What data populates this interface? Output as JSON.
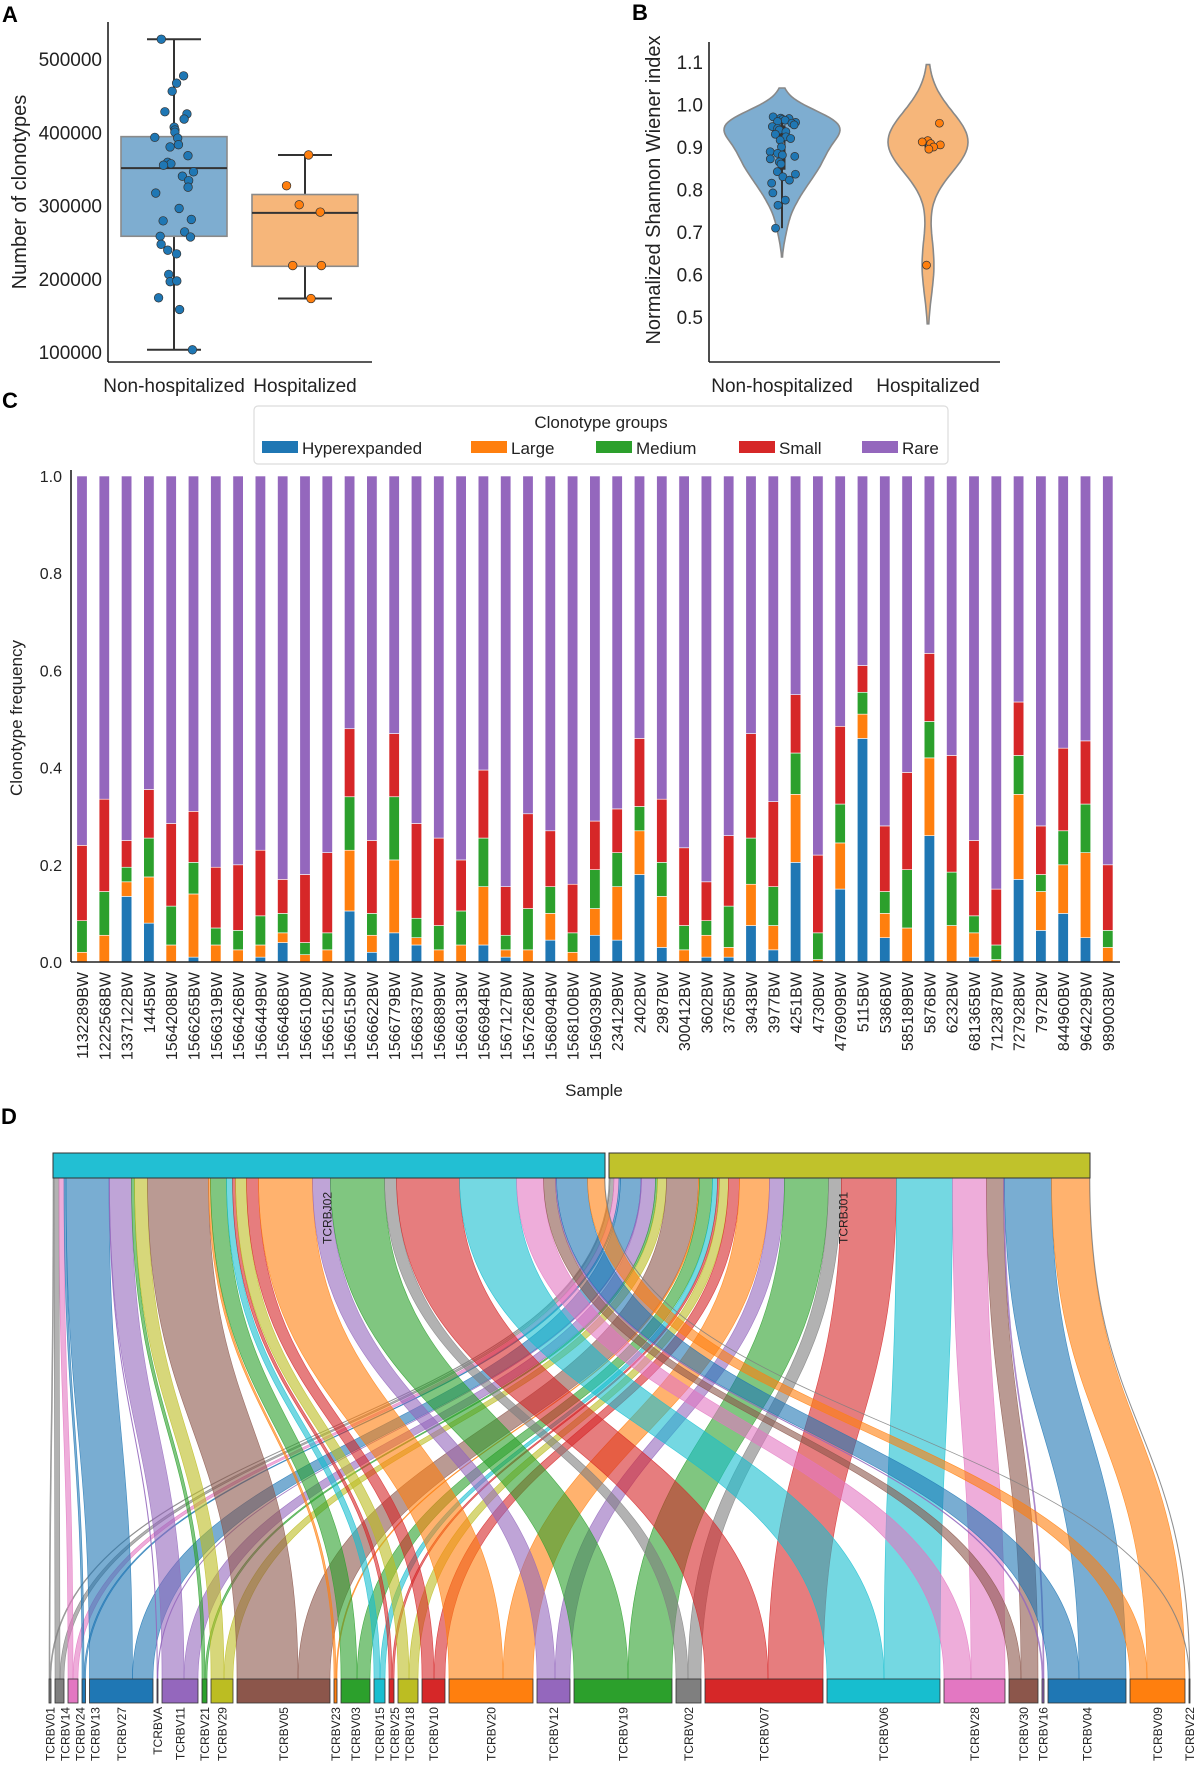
{
  "panels": {
    "a": "A",
    "b": "B",
    "c": "C",
    "d": "D"
  },
  "colors": {
    "blue": "#1f77b4",
    "orange": "#ff7f0e",
    "green": "#2ca02c",
    "red": "#d62728",
    "purple": "#9467bd",
    "brown": "#8c564b",
    "pink": "#e377c2",
    "gray": "#7f7f7f",
    "olive": "#bcbd22",
    "cyan": "#17becf",
    "box_blue": "#7eadd0",
    "box_orange": "#f6b67a"
  },
  "chart_data": [
    {
      "id": "A",
      "type": "box",
      "ylabel": "Number of clonotypes",
      "xlabel": "",
      "categories": [
        "Non-hospitalized",
        "Hospitalized"
      ],
      "yticks": [
        100000,
        200000,
        300000,
        400000,
        500000
      ],
      "ylim": [
        90000,
        540000
      ],
      "boxes": [
        {
          "name": "Non-hospitalized",
          "q1": 258000,
          "median": 351000,
          "q3": 394000,
          "whisker_low": 103000,
          "whisker_high": 527000
        },
        {
          "name": "Hospitalized",
          "q1": 217000,
          "median": 290000,
          "q3": 315000,
          "whisker_low": 173000,
          "whisker_high": 369000
        }
      ],
      "points": [
        [
          527000,
          477000,
          467000,
          456000,
          428000,
          425000,
          418000,
          407000,
          403000,
          400000,
          393000,
          392000,
          383000,
          380000,
          368000,
          359000,
          357000,
          355000,
          346000,
          340000,
          334000,
          325000,
          317000,
          296000,
          281000,
          279000,
          264000,
          258000,
          257000,
          247000,
          239000,
          234000,
          206000,
          196000,
          197000,
          174000,
          158000,
          103000
        ],
        [
          369000,
          327000,
          301000,
          291000,
          218000,
          218000,
          173000
        ]
      ]
    },
    {
      "id": "B",
      "type": "violin",
      "ylabel": "Normalized Shannon Wiener index",
      "xlabel": "",
      "categories": [
        "Non-hospitalized",
        "Hospitalized"
      ],
      "yticks": [
        0.5,
        0.6,
        0.7,
        0.8,
        0.9,
        1.0,
        1.1
      ],
      "ylim": [
        0.45,
        1.15
      ],
      "points": [
        [
          0.971,
          0.968,
          0.967,
          0.965,
          0.963,
          0.96,
          0.958,
          0.956,
          0.952,
          0.948,
          0.944,
          0.94,
          0.936,
          0.93,
          0.924,
          0.92,
          0.916,
          0.9,
          0.889,
          0.885,
          0.881,
          0.878,
          0.872,
          0.865,
          0.86,
          0.842,
          0.836,
          0.83,
          0.822,
          0.815,
          0.792,
          0.775,
          0.763,
          0.709
        ],
        [
          0.956,
          0.915,
          0.912,
          0.908,
          0.905,
          0.9,
          0.895,
          0.622
        ]
      ]
    },
    {
      "id": "C",
      "type": "bar",
      "stacked": true,
      "ylabel": "Clonotype frequency",
      "xlabel": "Sample",
      "ylim": [
        0,
        1.0
      ],
      "yticks": [
        0.0,
        0.2,
        0.4,
        0.6,
        0.8,
        1.0
      ],
      "legend": {
        "title": "Clonotype groups",
        "placement": "top-center"
      },
      "categories": [
        "1132289BW",
        "1222568BW",
        "1337122BW",
        "1445BW",
        "1564208BW",
        "1566265BW",
        "1566319BW",
        "1566426BW",
        "1566449BW",
        "1566486BW",
        "1566510BW",
        "1566512BW",
        "1566515BW",
        "1566622BW",
        "1566779BW",
        "1566837BW",
        "1566889BW",
        "1566913BW",
        "1566984BW",
        "1567127BW",
        "1567268BW",
        "1568094BW",
        "1568100BW",
        "1569039BW",
        "234129BW",
        "2402BW",
        "2987BW",
        "300412BW",
        "3602BW",
        "3765BW",
        "3943BW",
        "3977BW",
        "4251BW",
        "4730BW",
        "476909BW",
        "5115BW",
        "5386BW",
        "585189BW",
        "5876BW",
        "6232BW",
        "681365BW",
        "712387BW",
        "727928BW",
        "7972BW",
        "844960BW",
        "964229BW",
        "989003BW"
      ],
      "series": [
        {
          "name": "Hyperexpanded",
          "color": "#1f77b4",
          "values": [
            0,
            0,
            0.135,
            0.08,
            0,
            0.01,
            0,
            0,
            0.01,
            0.04,
            0,
            0,
            0.105,
            0.02,
            0.06,
            0.035,
            0,
            0,
            0.035,
            0.01,
            0,
            0.045,
            0,
            0.055,
            0.045,
            0.18,
            0.03,
            0,
            0.01,
            0.01,
            0.075,
            0.025,
            0.205,
            0,
            0.15,
            0.46,
            0.05,
            0,
            0.26,
            0,
            0.01,
            0,
            0.17,
            0.065,
            0.1,
            0.05,
            0
          ]
        },
        {
          "name": "Large",
          "color": "#ff7f0e",
          "values": [
            0.02,
            0.055,
            0.03,
            0.095,
            0.035,
            0.13,
            0.035,
            0.025,
            0.025,
            0.02,
            0.015,
            0.025,
            0.125,
            0.035,
            0.15,
            0.015,
            0.025,
            0.035,
            0.12,
            0.015,
            0.025,
            0.055,
            0.02,
            0.055,
            0.11,
            0.09,
            0.105,
            0.025,
            0.045,
            0.02,
            0.085,
            0.05,
            0.14,
            0.005,
            0.095,
            0.05,
            0.05,
            0.07,
            0.16,
            0.075,
            0.05,
            0.005,
            0.175,
            0.08,
            0.1,
            0.175,
            0.03
          ]
        },
        {
          "name": "Medium",
          "color": "#2ca02c",
          "values": [
            0.065,
            0.09,
            0.03,
            0.08,
            0.08,
            0.065,
            0.035,
            0.04,
            0.06,
            0.04,
            0.025,
            0.035,
            0.11,
            0.045,
            0.13,
            0.04,
            0.05,
            0.07,
            0.1,
            0.03,
            0.085,
            0.055,
            0.04,
            0.08,
            0.07,
            0.05,
            0.07,
            0.05,
            0.03,
            0.085,
            0.095,
            0.08,
            0.085,
            0.055,
            0.08,
            0.045,
            0.045,
            0.12,
            0.075,
            0.11,
            0.035,
            0.03,
            0.08,
            0.035,
            0.07,
            0.1,
            0.035
          ]
        },
        {
          "name": "Small",
          "color": "#d62728",
          "values": [
            0.155,
            0.19,
            0.055,
            0.1,
            0.17,
            0.105,
            0.125,
            0.135,
            0.135,
            0.07,
            0.14,
            0.165,
            0.14,
            0.15,
            0.13,
            0.195,
            0.18,
            0.105,
            0.14,
            0.1,
            0.195,
            0.115,
            0.1,
            0.1,
            0.09,
            0.14,
            0.13,
            0.16,
            0.08,
            0.145,
            0.215,
            0.175,
            0.12,
            0.16,
            0.16,
            0.055,
            0.135,
            0.2,
            0.14,
            0.24,
            0.155,
            0.115,
            0.11,
            0.1,
            0.17,
            0.13,
            0.135
          ]
        },
        {
          "name": "Rare",
          "color": "#9467bd",
          "values": [
            0.76,
            0.665,
            0.75,
            0.645,
            0.715,
            0.69,
            0.805,
            0.8,
            0.77,
            0.83,
            0.82,
            0.775,
            0.52,
            0.75,
            0.53,
            0.715,
            0.745,
            0.79,
            0.605,
            0.845,
            0.695,
            0.73,
            0.84,
            0.71,
            0.685,
            0.54,
            0.665,
            0.765,
            0.835,
            0.74,
            0.53,
            0.67,
            0.45,
            0.78,
            0.515,
            0.39,
            0.72,
            0.61,
            0.365,
            0.575,
            0.75,
            0.85,
            0.465,
            0.72,
            0.56,
            0.545,
            0.8
          ]
        }
      ]
    },
    {
      "id": "D",
      "type": "sankey",
      "sources": [
        {
          "name": "TCRBJ02",
          "color": "#22bfd3"
        },
        {
          "name": "TCRBJ01",
          "color": "#c0c22b"
        }
      ],
      "targets": [
        {
          "name": "TCRBV01",
          "color": "#7f7f7f",
          "TCRBJ02": 1,
          "TCRBJ01": 1
        },
        {
          "name": "TCRBV14",
          "color": "#7f7f7f",
          "TCRBJ02": 5,
          "TCRBJ01": 4
        },
        {
          "name": "TCRBV24",
          "color": "#e377c2",
          "TCRBJ02": 5,
          "TCRBJ01": 5
        },
        {
          "name": "TCRBV13",
          "color": "#1f77b4",
          "TCRBJ02": 2,
          "TCRBJ01": 1.5
        },
        {
          "name": "TCRBV27",
          "color": "#1f77b4",
          "TCRBJ02": 43,
          "TCRBJ01": 20.5
        },
        {
          "name": "TCRBVA",
          "color": "#9467bd",
          "TCRBJ02": 0.5,
          "TCRBJ01": 0.5
        },
        {
          "name": "TCRBV11",
          "color": "#9467bd",
          "TCRBJ02": 22,
          "TCRBJ01": 14
        },
        {
          "name": "TCRBV21",
          "color": "#2ca02c",
          "TCRBJ02": 3,
          "TCRBJ01": 2
        },
        {
          "name": "TCRBV29",
          "color": "#bcbd22",
          "TCRBJ02": 13,
          "TCRBJ01": 9
        },
        {
          "name": "TCRBV05",
          "color": "#8c564b",
          "TCRBJ02": 61,
          "TCRBJ01": 32
        },
        {
          "name": "TCRBV23",
          "color": "#ff7f0e",
          "TCRBJ02": 2,
          "TCRBJ01": 1
        },
        {
          "name": "TCRBV03",
          "color": "#2ca02c",
          "TCRBJ02": 16,
          "TCRBJ01": 13
        },
        {
          "name": "TCRBV15",
          "color": "#17becf",
          "TCRBJ02": 6,
          "TCRBJ01": 5
        },
        {
          "name": "TCRBV25",
          "color": "#d62728",
          "TCRBJ02": 3,
          "TCRBJ01": 2
        },
        {
          "name": "TCRBV18",
          "color": "#bcbd22",
          "TCRBJ02": 11,
          "TCRBJ01": 9
        },
        {
          "name": "TCRBV10",
          "color": "#d62728",
          "TCRBJ02": 12,
          "TCRBJ01": 11
        },
        {
          "name": "TCRBV20",
          "color": "#ff7f0e",
          "TCRBJ02": 54,
          "TCRBJ01": 30
        },
        {
          "name": "TCRBV12",
          "color": "#9467bd",
          "TCRBJ02": 18,
          "TCRBJ01": 15
        },
        {
          "name": "TCRBV19",
          "color": "#2ca02c",
          "TCRBJ02": 54,
          "TCRBJ01": 44
        },
        {
          "name": "TCRBV02",
          "color": "#7f7f7f",
          "TCRBJ02": 12,
          "TCRBJ01": 13
        },
        {
          "name": "TCRBV07",
          "color": "#d62728",
          "TCRBJ02": 63,
          "TCRBJ01": 55
        },
        {
          "name": "TCRBV06",
          "color": "#17becf",
          "TCRBJ02": 57,
          "TCRBJ01": 56
        },
        {
          "name": "TCRBV28",
          "color": "#e377c2",
          "TCRBJ02": 27,
          "TCRBJ01": 34
        },
        {
          "name": "TCRBV30",
          "color": "#8c564b",
          "TCRBJ02": 12,
          "TCRBJ01": 17
        },
        {
          "name": "TCRBV16",
          "color": "#9467bd",
          "TCRBJ02": 1,
          "TCRBJ01": 1
        },
        {
          "name": "TCRBV04",
          "color": "#1f77b4",
          "TCRBJ02": 31,
          "TCRBJ01": 47
        },
        {
          "name": "TCRBV09",
          "color": "#ff7f0e",
          "TCRBJ02": 17,
          "TCRBJ01": 38
        },
        {
          "name": "TCRBV22",
          "color": "#7f7f7f",
          "TCRBJ02": 0.5,
          "TCRBJ01": 0.5
        }
      ]
    }
  ]
}
